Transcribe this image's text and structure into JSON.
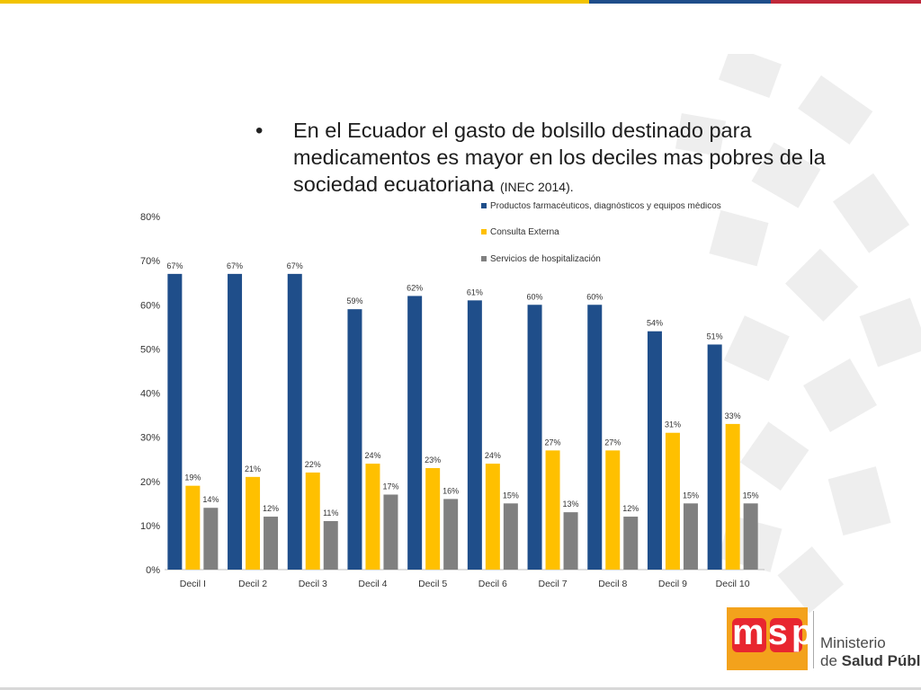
{
  "slide": {
    "bullet_symbol": "•",
    "bullet_text": "En el Ecuador el gasto de bolsillo destinado para medicamentos es mayor en los deciles mas pobres de la sociedad ecuatoriana ",
    "bullet_citation": "(INEC 2014).",
    "logo_line1": "Ministerio",
    "logo_line2_prefix": "de ",
    "logo_line2_bold": "Salud Públic"
  },
  "colors": {
    "series1": "#1f4e8a",
    "series2": "#ffc000",
    "series3": "#808080",
    "top_yellow": "#f2c300",
    "top_blue": "#1f4e8a",
    "top_red": "#c0283a"
  },
  "chart_data": {
    "type": "bar",
    "categories": [
      "Decil I",
      "Decil 2",
      "Decil 3",
      "Decil 4",
      "Decil 5",
      "Decil 6",
      "Decil 7",
      "Decil 8",
      "Decil 9",
      "Decil 10"
    ],
    "series": [
      {
        "name": "Productos farmacéuticos, diagnósticos y equipos médicos",
        "values": [
          67,
          67,
          67,
          59,
          62,
          61,
          60,
          60,
          54,
          51
        ],
        "labels": [
          "67%",
          "67%",
          "67%",
          "59%",
          "62%",
          "61%",
          "60%",
          "60%",
          "54%",
          "51%"
        ]
      },
      {
        "name": "Consulta Externa",
        "values": [
          19,
          21,
          22,
          24,
          23,
          24,
          27,
          27,
          31,
          33
        ],
        "labels": [
          "19%",
          "21%",
          "22%",
          "24%",
          "23%",
          "24%",
          "27%",
          "27%",
          "31%",
          "33%"
        ]
      },
      {
        "name": "Servicios de hospitalización",
        "values": [
          14,
          12,
          11,
          17,
          16,
          15,
          13,
          12,
          15,
          15
        ],
        "labels": [
          "14%",
          "12%",
          "11%",
          "17%",
          "16%",
          "15%",
          "13%",
          "12%",
          "15%",
          "15%"
        ]
      }
    ],
    "ylim": [
      0,
      80
    ],
    "yticks": [
      0,
      10,
      20,
      30,
      40,
      50,
      60,
      70,
      80
    ],
    "ytick_labels": [
      "0%",
      "10%",
      "20%",
      "30%",
      "40%",
      "50%",
      "60%",
      "70%",
      "80%"
    ],
    "grid": false,
    "legend_position": "top-right"
  }
}
